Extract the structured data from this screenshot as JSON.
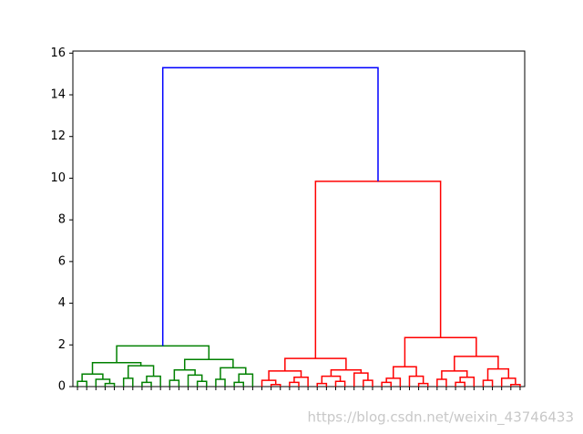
{
  "chart_data": {
    "type": "dendrogram",
    "ylim": [
      0,
      16.1
    ],
    "yticks": [
      0,
      2,
      4,
      6,
      8,
      10,
      12,
      14,
      16
    ],
    "watermark": "https://blog.csdn.net/weixin_43746433",
    "tree": {
      "height": 15.3,
      "color": "#0000ff",
      "children": [
        {
          "height": 1.95,
          "color": "#008000",
          "children": [
            {
              "height": 1.15,
              "children": [
                {
                  "height": 0.6,
                  "children": [
                    {
                      "height": 0.25,
                      "children": [
                        0,
                        0
                      ]
                    },
                    {
                      "height": 0.35,
                      "children": [
                        0,
                        {
                          "height": 0.15,
                          "children": [
                            0,
                            0
                          ]
                        }
                      ]
                    }
                  ]
                },
                {
                  "height": 1.0,
                  "children": [
                    {
                      "height": 0.4,
                      "children": [
                        0,
                        0
                      ]
                    },
                    {
                      "height": 0.5,
                      "children": [
                        {
                          "height": 0.2,
                          "children": [
                            0,
                            0
                          ]
                        },
                        0
                      ]
                    }
                  ]
                }
              ]
            },
            {
              "height": 1.3,
              "children": [
                {
                  "height": 0.8,
                  "children": [
                    {
                      "height": 0.3,
                      "children": [
                        0,
                        0
                      ]
                    },
                    {
                      "height": 0.55,
                      "children": [
                        0,
                        {
                          "height": 0.25,
                          "children": [
                            0,
                            0
                          ]
                        }
                      ]
                    }
                  ]
                },
                {
                  "height": 0.9,
                  "children": [
                    {
                      "height": 0.35,
                      "children": [
                        0,
                        0
                      ]
                    },
                    {
                      "height": 0.6,
                      "children": [
                        {
                          "height": 0.2,
                          "children": [
                            0,
                            0
                          ]
                        },
                        0
                      ]
                    }
                  ]
                }
              ]
            }
          ]
        },
        {
          "height": 9.85,
          "color": "#ff0000",
          "children": [
            {
              "height": 1.35,
              "children": [
                {
                  "height": 0.75,
                  "children": [
                    {
                      "height": 0.3,
                      "children": [
                        0,
                        {
                          "height": 0.1,
                          "children": [
                            0,
                            0
                          ]
                        }
                      ]
                    },
                    {
                      "height": 0.45,
                      "children": [
                        {
                          "height": 0.2,
                          "children": [
                            0,
                            0
                          ]
                        },
                        0
                      ]
                    }
                  ]
                },
                {
                  "height": 0.8,
                  "children": [
                    {
                      "height": 0.5,
                      "children": [
                        {
                          "height": 0.15,
                          "children": [
                            0,
                            0
                          ]
                        },
                        {
                          "height": 0.25,
                          "children": [
                            0,
                            0
                          ]
                        }
                      ]
                    },
                    {
                      "height": 0.65,
                      "children": [
                        0,
                        {
                          "height": 0.3,
                          "children": [
                            0,
                            0
                          ]
                        }
                      ]
                    }
                  ]
                }
              ]
            },
            {
              "height": 2.35,
              "children": [
                {
                  "height": 0.95,
                  "children": [
                    {
                      "height": 0.4,
                      "children": [
                        {
                          "height": 0.2,
                          "children": [
                            0,
                            0
                          ]
                        },
                        0
                      ]
                    },
                    {
                      "height": 0.5,
                      "children": [
                        0,
                        {
                          "height": 0.15,
                          "children": [
                            0,
                            0
                          ]
                        }
                      ]
                    }
                  ]
                },
                {
                  "height": 1.45,
                  "children": [
                    {
                      "height": 0.75,
                      "children": [
                        {
                          "height": 0.35,
                          "children": [
                            0,
                            0
                          ]
                        },
                        {
                          "height": 0.45,
                          "children": [
                            {
                              "height": 0.2,
                              "children": [
                                0,
                                0
                              ]
                            },
                            0
                          ]
                        }
                      ]
                    },
                    {
                      "height": 0.85,
                      "children": [
                        {
                          "height": 0.3,
                          "children": [
                            0,
                            0
                          ]
                        },
                        {
                          "height": 0.4,
                          "children": [
                            0,
                            {
                              "height": 0.1,
                              "children": [
                                0,
                                0
                              ]
                            }
                          ]
                        }
                      ]
                    }
                  ]
                }
              ]
            }
          ]
        }
      ]
    }
  }
}
